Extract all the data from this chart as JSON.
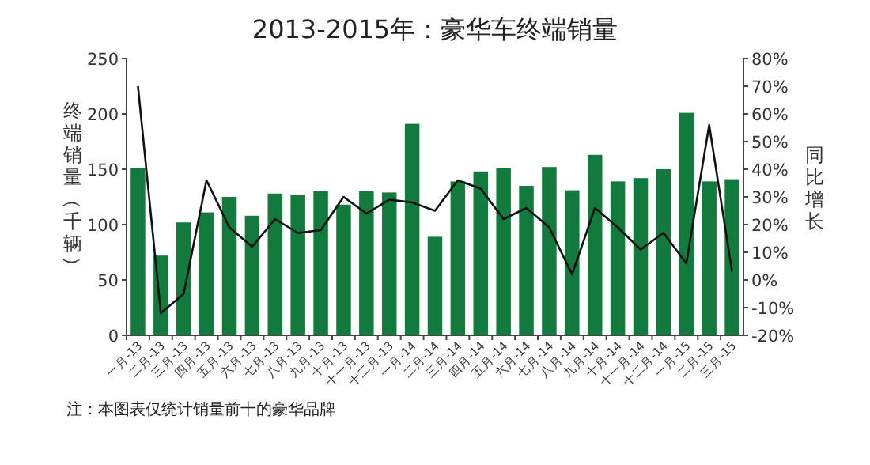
{
  "chart_data": {
    "type": "bar",
    "title": "2013-2015年：豪华车终端销量",
    "ylabel": "终端销量（千辆）",
    "y2label": "同比增长",
    "categories": [
      "一月-13",
      "二月-13",
      "三月-13",
      "四月-13",
      "五月-13",
      "六月-13",
      "七月-13",
      "八月-13",
      "九月-13",
      "十月-13",
      "十一月-13",
      "十二月-13",
      "一月-14",
      "二月-14",
      "三月-14",
      "四月-14",
      "五月-14",
      "六月-14",
      "七月-14",
      "八月-14",
      "九月-14",
      "十月-14",
      "十一月-14",
      "十二月-14",
      "一月-15",
      "二月-15",
      "三月-15"
    ],
    "series": [
      {
        "color": "#137a3e",
        "values": [
          151,
          72,
          102,
          111,
          125,
          108,
          128,
          127,
          130,
          118,
          130,
          129,
          191,
          89,
          139,
          148,
          151,
          135,
          152,
          131,
          163,
          139,
          142,
          150,
          201,
          139,
          141
        ]
      },
      {
        "type": "line",
        "axis": "y2",
        "color": "#111111",
        "values": [
          70,
          -12,
          -5,
          36,
          19,
          12,
          22,
          17,
          18,
          30,
          24,
          29,
          28,
          25,
          36,
          33,
          22,
          26,
          19,
          2,
          26,
          19,
          11,
          17,
          6,
          56,
          3
        ]
      }
    ],
    "ylim": [
      0,
      250
    ],
    "yticks": [
      0,
      50,
      100,
      150,
      200,
      250
    ],
    "y2lim": [
      -20,
      80
    ],
    "y2ticks": [
      {
        "value": -20,
        "label": "-20%"
      },
      {
        "value": -10,
        "label": "-10%"
      },
      {
        "value": 0,
        "label": "0%"
      },
      {
        "value": 10,
        "label": "10%"
      },
      {
        "value": 20,
        "label": "20%"
      },
      {
        "value": 30,
        "label": "30%"
      },
      {
        "value": 40,
        "label": "40%"
      },
      {
        "value": 50,
        "label": "50%"
      },
      {
        "value": 60,
        "label": "60%"
      },
      {
        "value": 70,
        "label": "70%"
      },
      {
        "value": 80,
        "label": "80%"
      }
    ],
    "grid": false,
    "marker": "none",
    "line_style": "solid",
    "annotations": [
      "注：本图表仅统计销量前十的豪华品牌"
    ]
  }
}
